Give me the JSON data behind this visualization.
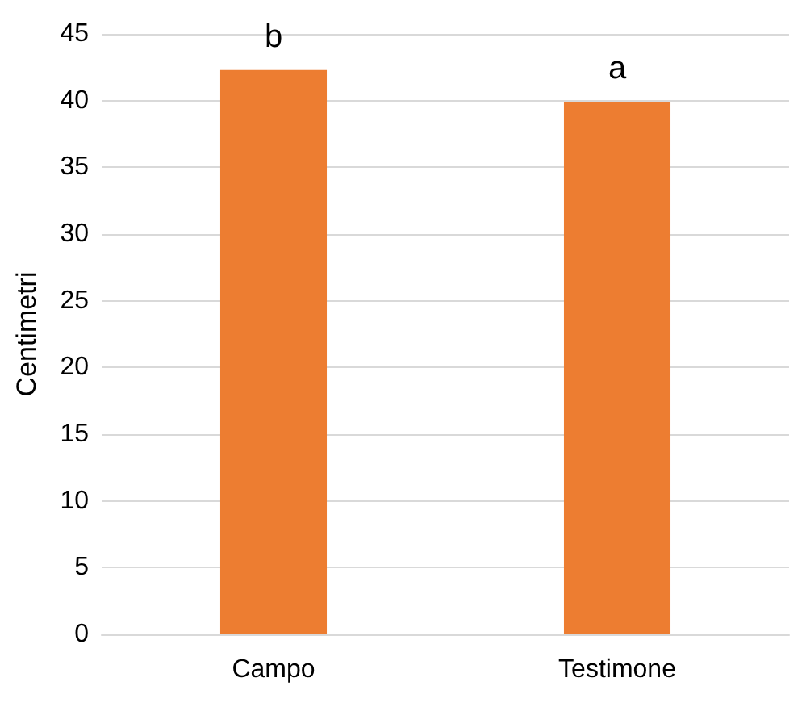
{
  "chart_data": {
    "type": "bar",
    "ylabel": "Centimetri",
    "categories": [
      "Campo",
      "Testimone"
    ],
    "values": [
      42.3,
      39.9
    ],
    "color": "#ed7d31",
    "ylim": [
      0,
      45
    ],
    "yticks": [
      0,
      5,
      10,
      15,
      20,
      25,
      30,
      35,
      40,
      45
    ],
    "grid": "y",
    "annotations": [
      {
        "text": "b",
        "x": "Campo",
        "y": 42.3
      },
      {
        "text": "a",
        "x": "Testimone",
        "y": 39.9
      }
    ]
  }
}
